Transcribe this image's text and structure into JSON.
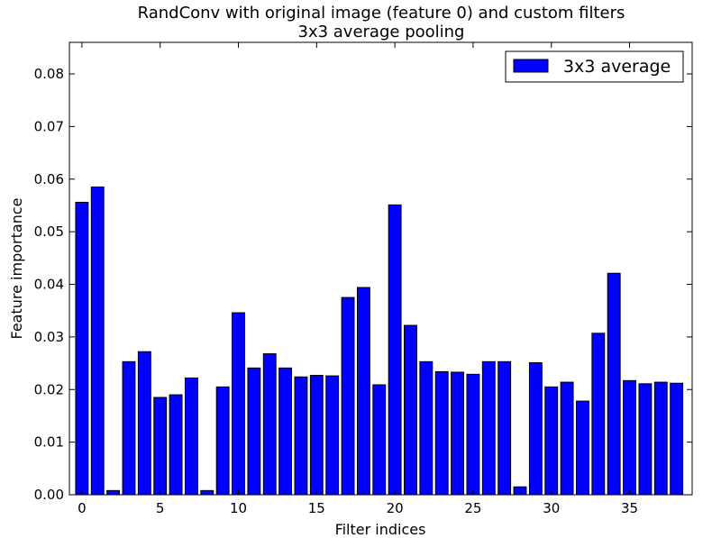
{
  "chart_data": {
    "type": "bar",
    "title": "RandConv with original image (feature 0) and custom filters",
    "subtitle": "3x3 average pooling",
    "xlabel": "Filter indices",
    "ylabel": "Feature importance",
    "xlim": [
      -0.8,
      39
    ],
    "ylim": [
      0,
      0.086
    ],
    "xticks": [
      0,
      5,
      10,
      15,
      20,
      25,
      30,
      35
    ],
    "yticks": [
      "0.00",
      "0.01",
      "0.02",
      "0.03",
      "0.04",
      "0.05",
      "0.06",
      "0.07",
      "0.08"
    ],
    "bar_width": 0.8,
    "grid": false,
    "legend_position": "top-right",
    "series": [
      {
        "name": "3x3 average",
        "color": "#0000ff",
        "x": [
          0,
          1,
          2,
          3,
          4,
          5,
          6,
          7,
          8,
          9,
          10,
          11,
          12,
          13,
          14,
          15,
          16,
          17,
          18,
          19,
          20,
          21,
          22,
          23,
          24,
          25,
          26,
          27,
          28,
          29,
          30,
          31,
          32,
          33,
          34,
          35,
          36,
          37,
          38
        ],
        "values": [
          0.0556,
          0.0585,
          0.0008,
          0.0253,
          0.0272,
          0.0185,
          0.019,
          0.0222,
          0.0008,
          0.0205,
          0.0346,
          0.0241,
          0.0268,
          0.0241,
          0.0224,
          0.0227,
          0.0226,
          0.0375,
          0.0394,
          0.0209,
          0.0551,
          0.0322,
          0.0253,
          0.0234,
          0.0233,
          0.0229,
          0.0253,
          0.0253,
          0.0015,
          0.0251,
          0.0205,
          0.0214,
          0.0178,
          0.0307,
          0.0421,
          0.0217,
          0.0211,
          0.0214,
          0.0212
        ]
      }
    ]
  }
}
